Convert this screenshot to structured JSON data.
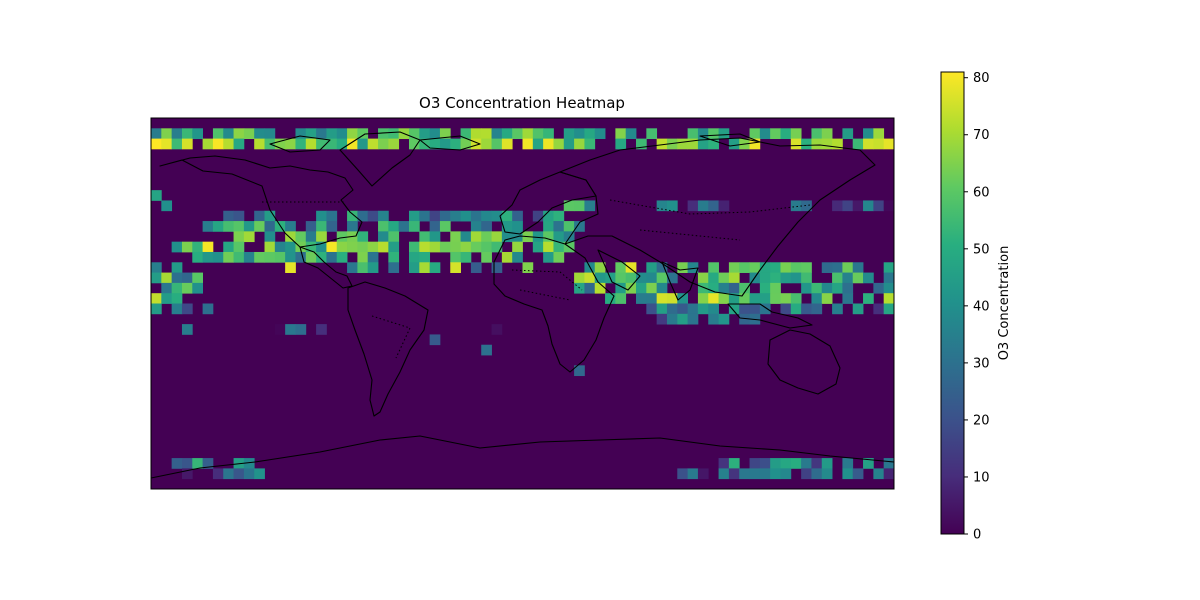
{
  "chart_data": {
    "type": "heatmap",
    "title": "O3 Concentration Heatmap",
    "projection": "PlateCarree (world, lon -180..180, lat -90..90)",
    "x": {
      "range": [
        -180,
        180
      ],
      "cells": 72
    },
    "y": {
      "range": [
        -90,
        90
      ],
      "cells": 36
    },
    "colorbar": {
      "label": "O3 Concentration",
      "range": [
        0,
        81
      ],
      "ticks": [
        "0",
        "10",
        "20",
        "30",
        "40",
        "50",
        "60",
        "70",
        "80"
      ],
      "colormap": "viridis"
    },
    "grid": false,
    "rows": [
      {
        "lat": 85,
        "segments": [
          [
            0,
            56,
            52
          ],
          [
            57,
            71,
            50
          ]
        ]
      },
      {
        "lat": 80,
        "segments": [
          [
            0,
            72,
            62
          ]
        ]
      },
      {
        "lat": 60,
        "segments": [
          [
            0,
            1,
            12
          ]
        ]
      },
      {
        "lat": 55,
        "segments": [
          [
            0,
            1,
            30
          ]
        ]
      },
      {
        "lat": 50,
        "segments": [
          [
            1,
            2,
            40
          ],
          [
            40,
            44,
            45
          ],
          [
            49,
            56,
            22
          ],
          [
            62,
            72,
            18
          ]
        ]
      },
      {
        "lat": 45,
        "segments": [
          [
            7,
            40,
            35
          ]
        ]
      },
      {
        "lat": 40,
        "segments": [
          [
            5,
            42,
            42
          ]
        ]
      },
      {
        "lat": 35,
        "segments": [
          [
            5,
            41,
            50
          ]
        ]
      },
      {
        "lat": 30,
        "segments": [
          [
            2,
            41,
            55
          ]
        ]
      },
      {
        "lat": 25,
        "segments": [
          [
            4,
            40,
            45
          ]
        ]
      },
      {
        "lat": 20,
        "segments": [
          [
            0,
            3,
            50
          ],
          [
            19,
            34,
            40
          ],
          [
            41,
            72,
            48
          ]
        ]
      },
      {
        "lat": 15,
        "segments": [
          [
            0,
            6,
            42
          ],
          [
            41,
            72,
            50
          ]
        ]
      },
      {
        "lat": 10,
        "segments": [
          [
            0,
            5,
            48
          ],
          [
            41,
            72,
            45
          ]
        ]
      },
      {
        "lat": 5,
        "segments": [
          [
            0,
            3,
            55
          ],
          [
            44,
            72,
            48
          ]
        ]
      },
      {
        "lat": 0,
        "segments": [
          [
            0,
            6,
            35
          ],
          [
            48,
            72,
            30
          ]
        ]
      },
      {
        "lat": -5,
        "segments": [
          [
            49,
            59,
            25
          ]
        ]
      },
      {
        "lat": -10,
        "segments": [
          [
            3,
            4,
            15
          ],
          [
            12,
            18,
            15
          ],
          [
            33,
            34,
            15
          ]
        ]
      },
      {
        "lat": -15,
        "segments": [
          [
            16,
            17,
            18
          ],
          [
            27,
            29,
            20
          ]
        ]
      },
      {
        "lat": -20,
        "segments": [
          [
            32,
            33,
            20
          ]
        ]
      },
      {
        "lat": -25,
        "segments": [
          [
            45,
            46,
            18
          ]
        ]
      },
      {
        "lat": -30,
        "segments": [
          [
            41,
            42,
            18
          ]
        ]
      },
      {
        "lat": -75,
        "segments": [
          [
            0,
            10,
            38
          ],
          [
            55,
            72,
            32
          ]
        ]
      },
      {
        "lat": -80,
        "segments": [
          [
            2,
            12,
            22
          ],
          [
            51,
            72,
            22
          ]
        ]
      }
    ],
    "hotspots": [
      {
        "lon": -177.5,
        "lat": 80,
        "value": 81
      },
      {
        "lon": -172.5,
        "lat": 80,
        "value": 78
      },
      {
        "lon": -162.5,
        "lat": 80,
        "value": 76
      },
      {
        "lon": -152.5,
        "lat": 80,
        "value": 70
      },
      {
        "lon": -142.5,
        "lat": 80,
        "value": 72
      },
      {
        "lon": 177.5,
        "lat": 80,
        "value": 78
      },
      {
        "lon": -152.5,
        "lat": 30,
        "value": 80
      },
      {
        "lon": -112.5,
        "lat": 20,
        "value": 78
      },
      {
        "lon": -92.5,
        "lat": 30,
        "value": 80
      },
      {
        "lon": -47.5,
        "lat": 20,
        "value": 70
      },
      {
        "lon": -32.5,
        "lat": 20,
        "value": 76
      },
      {
        "lon": -7.5,
        "lat": 25,
        "value": 70
      },
      {
        "lon": 2.5,
        "lat": 20,
        "value": 65
      },
      {
        "lon": 12.5,
        "lat": 30,
        "value": 72
      },
      {
        "lon": 22.5,
        "lat": 30,
        "value": 60
      },
      {
        "lon": 22.5,
        "lat": 50,
        "value": 60
      },
      {
        "lon": 32.5,
        "lat": 15,
        "value": 74
      },
      {
        "lon": 52.5,
        "lat": 20,
        "value": 78
      },
      {
        "lon": 37.5,
        "lat": 10,
        "value": 72
      },
      {
        "lon": 67.5,
        "lat": 5,
        "value": 76
      },
      {
        "lon": 72.5,
        "lat": 5,
        "value": 75
      },
      {
        "lon": 92.5,
        "lat": 5,
        "value": 78
      },
      {
        "lon": 102.5,
        "lat": 15,
        "value": 70
      },
      {
        "lon": 122.5,
        "lat": 5,
        "value": 62
      },
      {
        "lon": 147.5,
        "lat": 5,
        "value": 66
      },
      {
        "lon": 177.5,
        "lat": 5,
        "value": 72
      },
      {
        "lon": -162.5,
        "lat": 10,
        "value": 62
      },
      {
        "lon": -172.5,
        "lat": 15,
        "value": 70
      }
    ]
  }
}
